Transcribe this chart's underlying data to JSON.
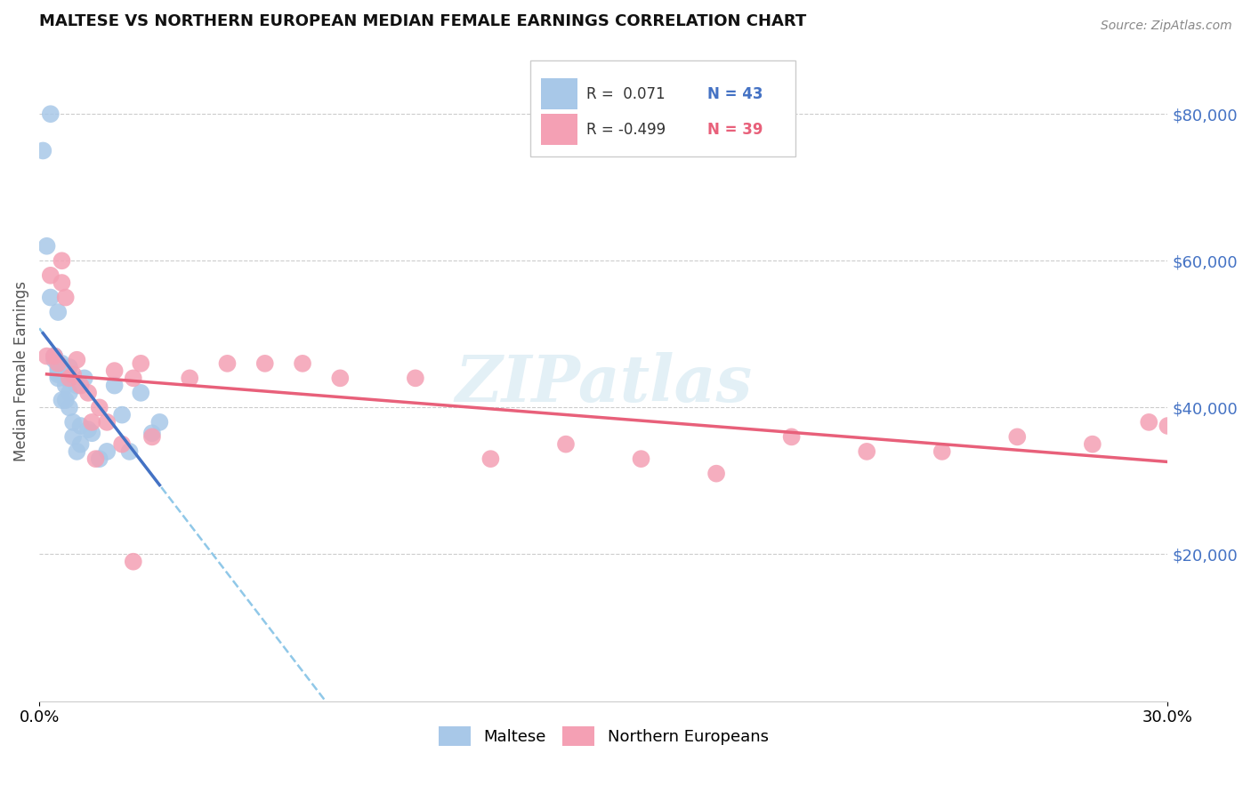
{
  "title": "MALTESE VS NORTHERN EUROPEAN MEDIAN FEMALE EARNINGS CORRELATION CHART",
  "source": "Source: ZipAtlas.com",
  "ylabel": "Median Female Earnings",
  "xlim": [
    0.0,
    0.3
  ],
  "ylim": [
    0,
    90000
  ],
  "ytick_values": [
    20000,
    40000,
    60000,
    80000
  ],
  "color_maltese": "#a8c8e8",
  "color_northern": "#f4a0b4",
  "color_maltese_line": "#4472c4",
  "color_maltese_dashed": "#90c8e8",
  "color_northern_line": "#e8607a",
  "color_tick_right": "#4472c4",
  "color_r1_text": "#4472c4",
  "color_r2_text": "#e8607a",
  "watermark": "ZIPatlas",
  "background_color": "#ffffff",
  "maltese_x": [
    0.001,
    0.002,
    0.003,
    0.003,
    0.004,
    0.004,
    0.004,
    0.005,
    0.005,
    0.005,
    0.005,
    0.006,
    0.006,
    0.006,
    0.006,
    0.007,
    0.007,
    0.007,
    0.008,
    0.008,
    0.008,
    0.009,
    0.01,
    0.011,
    0.011,
    0.012,
    0.013,
    0.014,
    0.016,
    0.018,
    0.02,
    0.022,
    0.024,
    0.027,
    0.03,
    0.032,
    0.005,
    0.005,
    0.006,
    0.007,
    0.008,
    0.009,
    0.01
  ],
  "maltese_y": [
    75000,
    62000,
    80000,
    55000,
    47000,
    47000,
    46500,
    46000,
    45500,
    45000,
    44000,
    46000,
    45500,
    45200,
    44500,
    45000,
    44000,
    43000,
    45500,
    42000,
    40000,
    38000,
    43000,
    37500,
    35000,
    44000,
    37000,
    36500,
    33000,
    34000,
    43000,
    39000,
    34000,
    42000,
    36500,
    38000,
    53000,
    44500,
    41000,
    41000,
    44000,
    36000,
    34000
  ],
  "northern_x": [
    0.002,
    0.003,
    0.004,
    0.005,
    0.006,
    0.006,
    0.007,
    0.008,
    0.009,
    0.01,
    0.011,
    0.013,
    0.014,
    0.016,
    0.018,
    0.02,
    0.022,
    0.025,
    0.027,
    0.03,
    0.04,
    0.05,
    0.06,
    0.07,
    0.08,
    0.1,
    0.12,
    0.14,
    0.16,
    0.18,
    0.2,
    0.22,
    0.24,
    0.26,
    0.28,
    0.295,
    0.3,
    0.025,
    0.015
  ],
  "northern_y": [
    47000,
    58000,
    47000,
    46000,
    60000,
    57000,
    55000,
    44000,
    44500,
    46500,
    43000,
    42000,
    38000,
    40000,
    38000,
    45000,
    35000,
    44000,
    46000,
    36000,
    44000,
    46000,
    46000,
    46000,
    44000,
    44000,
    33000,
    35000,
    33000,
    31000,
    36000,
    34000,
    34000,
    36000,
    35000,
    38000,
    37500,
    19000,
    33000
  ]
}
